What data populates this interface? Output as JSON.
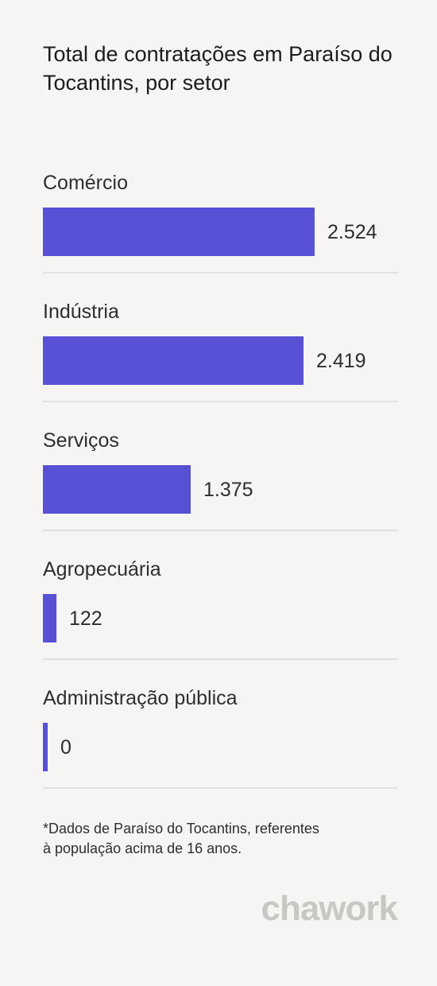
{
  "chart_data": {
    "type": "bar",
    "orientation": "horizontal",
    "title": "Total de contratações em Paraíso do Tocantins, por setor",
    "categories": [
      "Comércio",
      "Indústria",
      "Serviços",
      "Agropecuária",
      "Administração pública"
    ],
    "values": [
      2524,
      2419,
      1375,
      122,
      0
    ],
    "value_labels": [
      "2.524",
      "2.419",
      "1.375",
      "122",
      "0"
    ],
    "xlim": [
      0,
      3300
    ],
    "bar_color": "#5751d6",
    "grid": false,
    "legend": "none"
  },
  "footnote_line1": "*Dados de Paraíso do Tocantins, referentes",
  "footnote_line2": "à população acima de 16 anos.",
  "brand": "chawork"
}
